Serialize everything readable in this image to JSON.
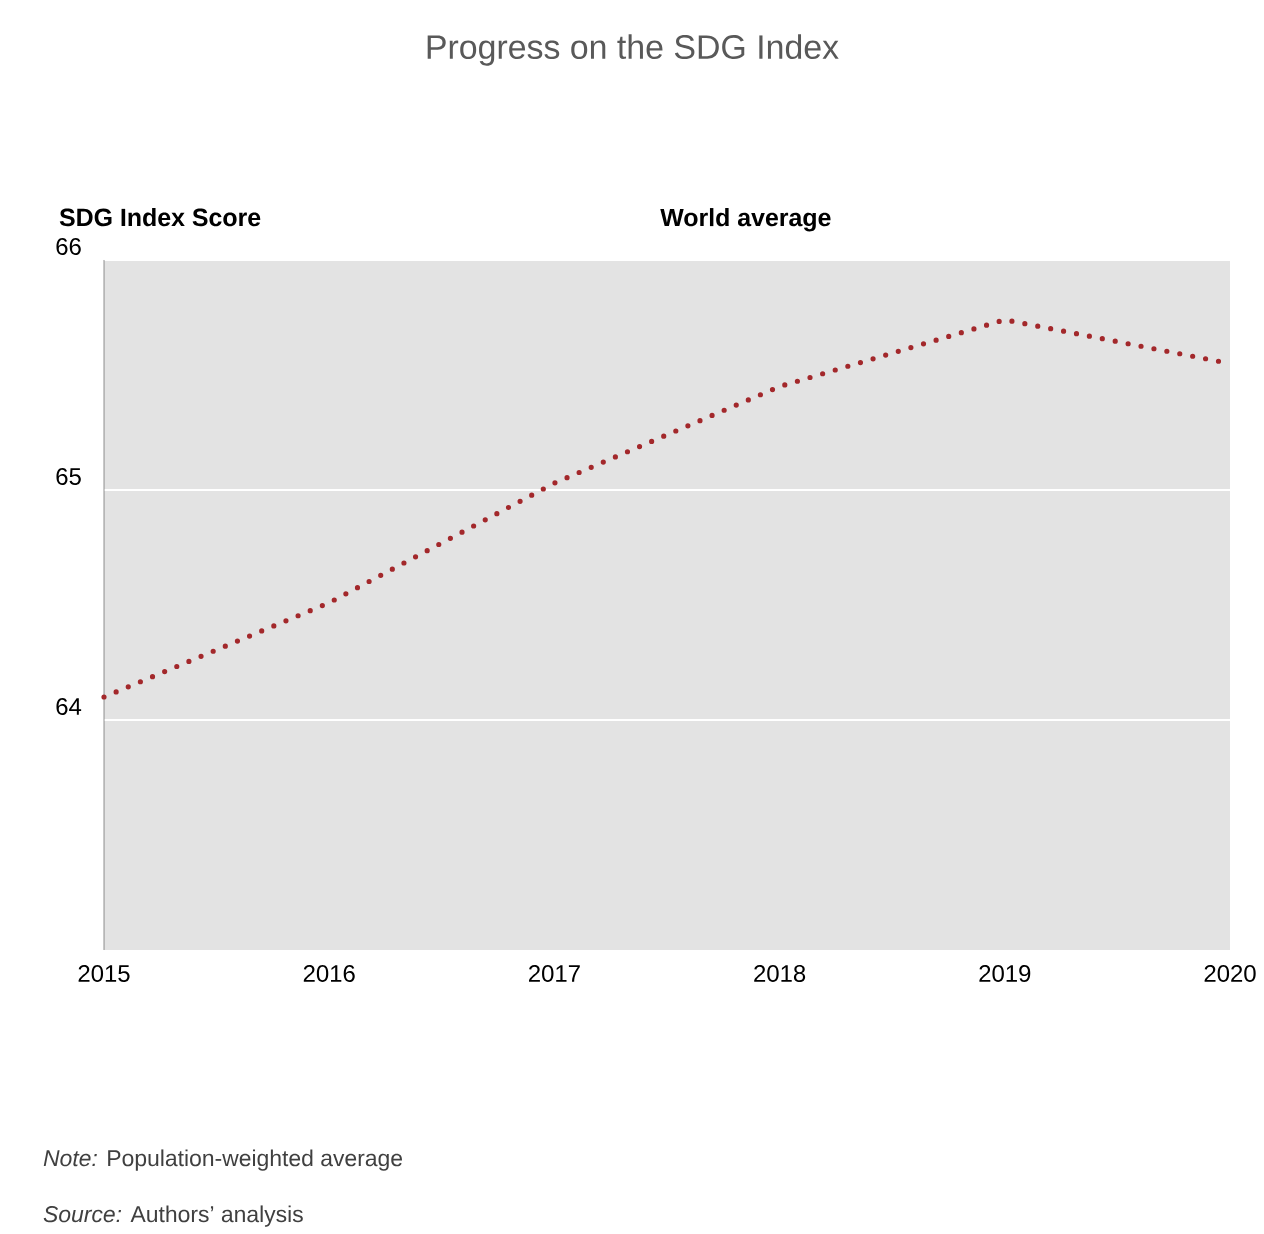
{
  "chart_data": {
    "type": "line",
    "title": "Progress on the SDG Index",
    "ylabel": "SDG Index Score",
    "x": [
      2015,
      2016,
      2017,
      2018,
      2019,
      2020
    ],
    "series": [
      {
        "name": "World average",
        "color": "#a3282b",
        "values": [
          64.1,
          64.51,
          65.03,
          65.45,
          65.74,
          65.55
        ]
      }
    ],
    "xlim": [
      2015,
      2020
    ],
    "ylim": [
      63,
      66
    ],
    "xticks": [
      2015,
      2016,
      2017,
      2018,
      2019,
      2020
    ],
    "yticks": [
      64,
      65,
      66
    ],
    "grid": "y",
    "marker": "none",
    "line_style": "dotted",
    "annotations": [
      "*Note:* Population-weighted average",
      "*Source:* Authors’ analysis"
    ]
  }
}
